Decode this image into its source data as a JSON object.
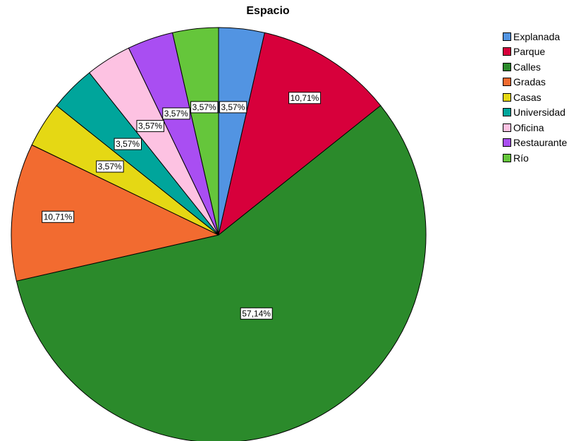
{
  "chart_data": {
    "type": "pie",
    "title": "Espacio",
    "start_angle_deg": 0,
    "direction": "clockwise",
    "slices": [
      {
        "name": "Explanada",
        "value": 3.57,
        "label": "3,57%",
        "color": "#5294e2"
      },
      {
        "name": "Parque",
        "value": 10.71,
        "label": "10,71%",
        "color": "#d7003b"
      },
      {
        "name": "Calles",
        "value": 57.14,
        "label": "57,14%",
        "color": "#2b8a2b"
      },
      {
        "name": "Gradas",
        "value": 10.71,
        "label": "10,71%",
        "color": "#f26b30"
      },
      {
        "name": "Casas",
        "value": 3.57,
        "label": "3,57%",
        "color": "#e5d814"
      },
      {
        "name": "Universidad",
        "value": 3.57,
        "label": "3,57%",
        "color": "#00a59b"
      },
      {
        "name": "Oficina",
        "value": 3.57,
        "label": "3,57%",
        "color": "#fdc2e2"
      },
      {
        "name": "Restaurante",
        "value": 3.57,
        "label": "3,57%",
        "color": "#a94ef2"
      },
      {
        "name": "Río",
        "value": 3.57,
        "label": "3,57%",
        "color": "#65c63b"
      }
    ],
    "legend_position": "right"
  }
}
